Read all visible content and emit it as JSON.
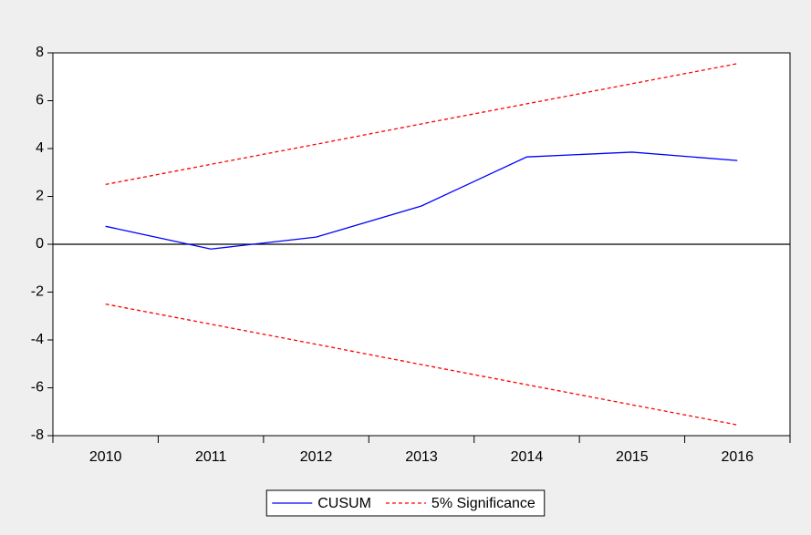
{
  "chart_data": {
    "type": "line",
    "categories": [
      "2010",
      "2011",
      "2012",
      "2013",
      "2014",
      "2015",
      "2016"
    ],
    "series": [
      {
        "name": "CUSUM",
        "color": "#0000ff",
        "dash": false,
        "values": [
          0.75,
          -0.2,
          0.3,
          1.6,
          3.65,
          3.85,
          3.5
        ]
      },
      {
        "name": "5% Significance",
        "color": "#ff0000",
        "dash": true,
        "values": [
          2.5,
          3.34,
          4.18,
          5.03,
          5.87,
          6.71,
          7.55
        ]
      },
      {
        "color": "#ff0000",
        "dash": true,
        "values": [
          -2.5,
          -3.34,
          -4.18,
          -5.03,
          -5.87,
          -6.71,
          -7.55
        ]
      }
    ],
    "ylim": [
      -8,
      8
    ],
    "yticks": [
      -8,
      -6,
      -4,
      -2,
      0,
      2,
      4,
      6,
      8
    ],
    "hline": 0,
    "grid": false,
    "legend": "bottom"
  }
}
